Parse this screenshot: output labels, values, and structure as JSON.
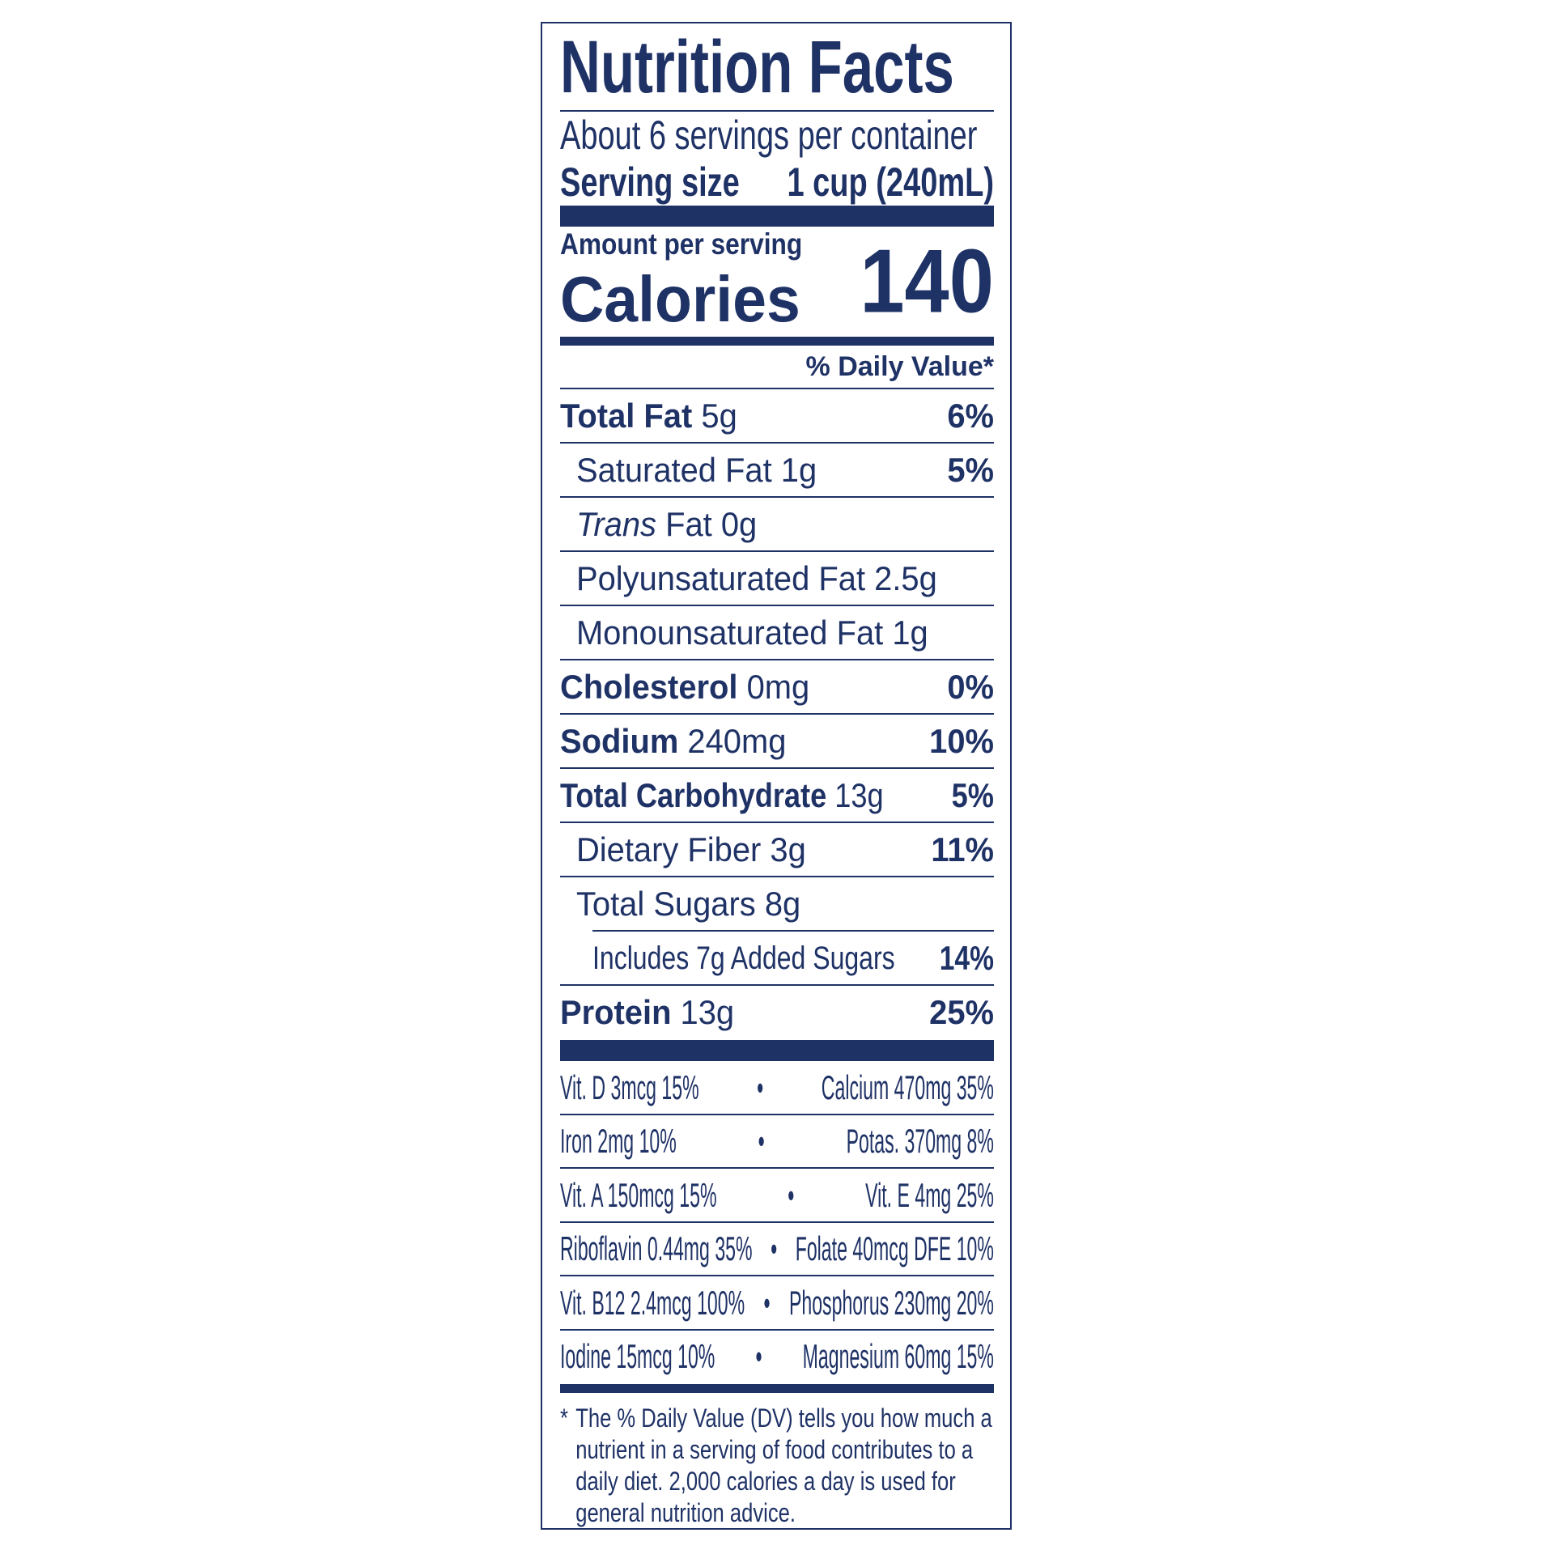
{
  "colors": {
    "ink": "#1f3266",
    "background": "#ffffff"
  },
  "title": "Nutrition Facts",
  "servings_per_container": "About 6 servings per container",
  "serving_size_label": "Serving size",
  "serving_size_value": "1 cup (240mL)",
  "amount_per_serving": "Amount per serving",
  "calories_label": "Calories",
  "calories_value": "140",
  "daily_value_header": "% Daily Value*",
  "nutrients": [
    {
      "name": "Total Fat",
      "amount": "5g",
      "dv": "6%"
    },
    {
      "name": "Saturated Fat",
      "amount": "1g",
      "dv": "5%"
    },
    {
      "name_italic": "Trans",
      "name": "Fat",
      "amount": "0g",
      "dv": ""
    },
    {
      "name": "Polyunsaturated Fat",
      "amount": "2.5g",
      "dv": ""
    },
    {
      "name": "Monounsaturated Fat",
      "amount": "1g",
      "dv": ""
    },
    {
      "name": "Cholesterol",
      "amount": "0mg",
      "dv": "0%"
    },
    {
      "name": "Sodium",
      "amount": "240mg",
      "dv": "10%"
    },
    {
      "name": "Total Carbohydrate",
      "amount": "13g",
      "dv": "5%"
    },
    {
      "name": "Dietary Fiber",
      "amount": "3g",
      "dv": "11%"
    },
    {
      "name": "Total Sugars",
      "amount": "8g",
      "dv": ""
    },
    {
      "name": "Includes 7g Added Sugars",
      "amount": "",
      "dv": "14%"
    },
    {
      "name": "Protein",
      "amount": "13g",
      "dv": "25%"
    }
  ],
  "vitamins": [
    {
      "left": "Vit. D 3mcg 15%",
      "bullet": "•",
      "right": "Calcium 470mg 35%"
    },
    {
      "left": "Iron 2mg 10%",
      "bullet": "•",
      "right": "Potas. 370mg 8%"
    },
    {
      "left": "Vit. A 150mcg 15%",
      "bullet": "•",
      "right": "Vit. E 4mg 25%"
    },
    {
      "left": "Riboflavin 0.44mg 35%",
      "bullet": "•",
      "right": "Folate 40mcg DFE 10%"
    },
    {
      "left": "Vit. B12 2.4mcg 100%",
      "bullet": "•",
      "right": "Phosphorus 230mg 20%"
    },
    {
      "left": "Iodine 15mcg 10%",
      "bullet": "•",
      "right": "Magnesium 60mg 15%"
    }
  ],
  "footnote": {
    "star": "*",
    "text": "The % Daily Value (DV) tells you how much a nutrient in a serving of food contributes to a daily diet. 2,000 calories a day is used for general nutrition advice."
  }
}
